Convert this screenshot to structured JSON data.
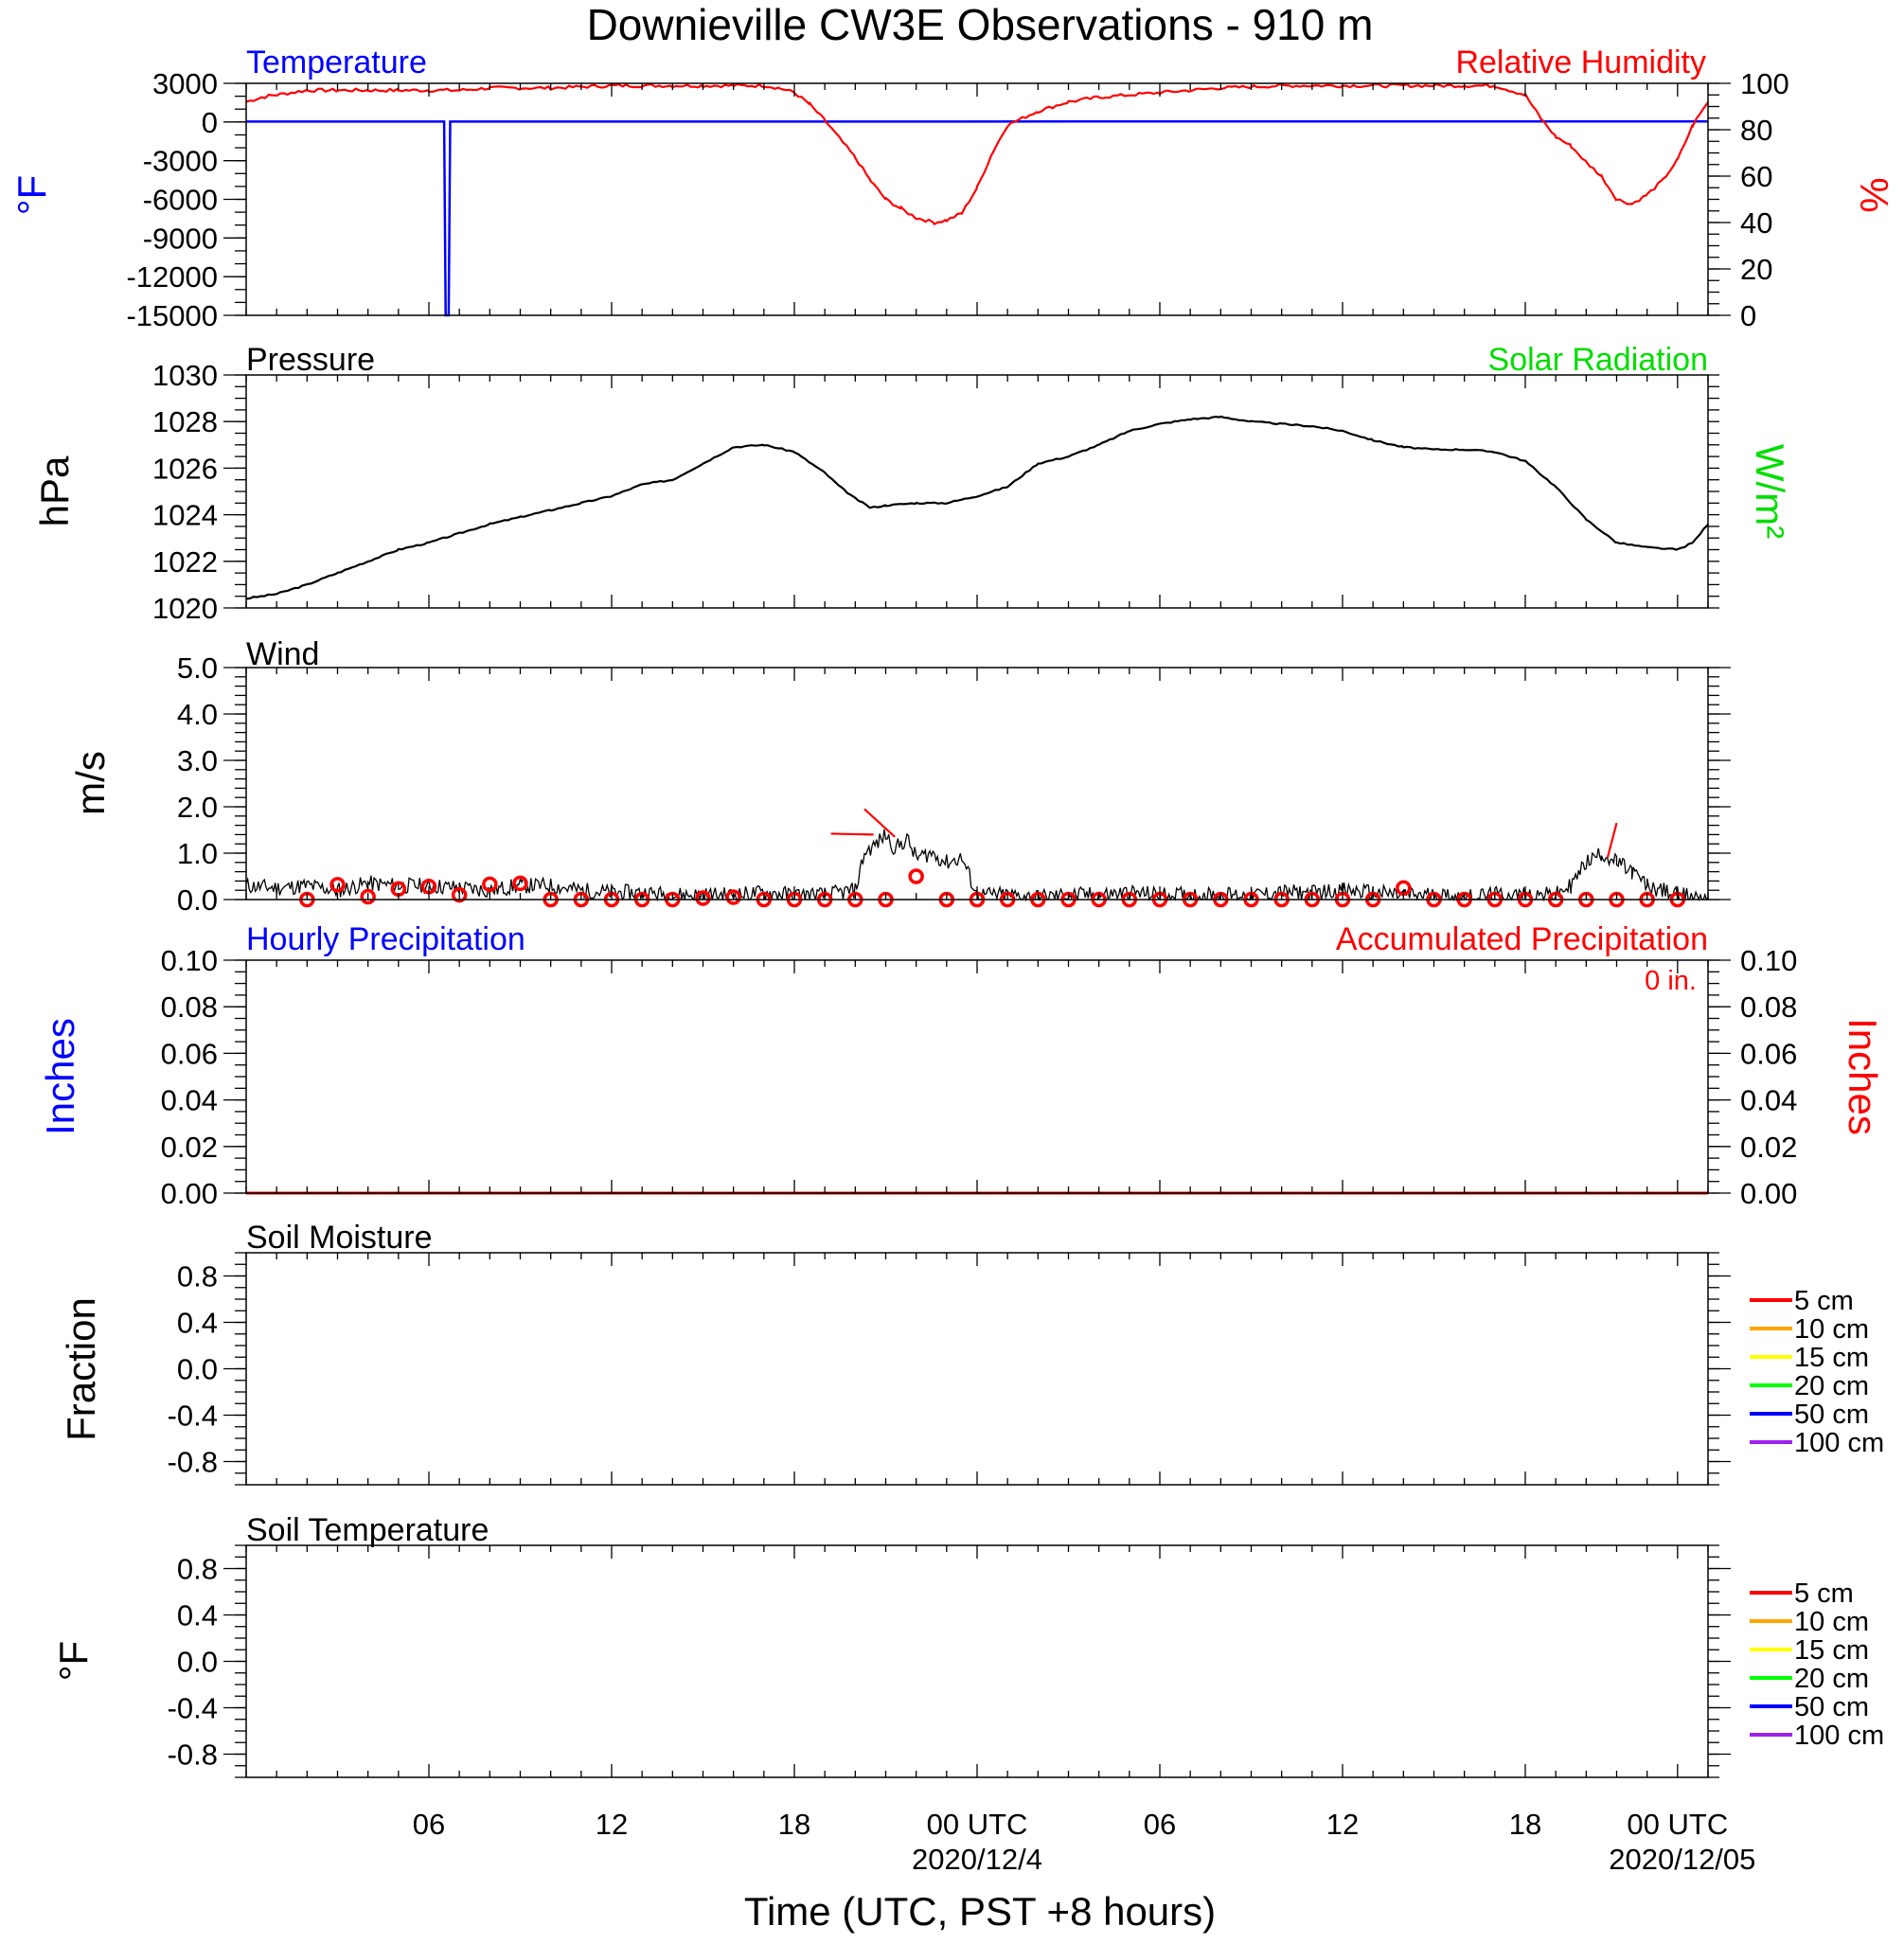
{
  "title": "Downieville CW3E Observations - 910 m",
  "x_axis": {
    "label": "Time (UTC, PST +8 hours)",
    "tick_labels": [
      "06",
      "12",
      "18",
      "00 UTC",
      "06",
      "12",
      "18",
      "00 UTC"
    ],
    "date_labels": [
      "2020/12/4",
      "2020/12/05"
    ]
  },
  "panels": {
    "temp_rh": {
      "left_title": "Temperature",
      "right_title": "Relative Humidity",
      "left_unit": "°F",
      "right_unit": "%",
      "left_ticks": [
        "3000",
        "0",
        "-3000",
        "-6000",
        "-9000",
        "-12000",
        "-15000"
      ],
      "right_ticks": [
        "100",
        "80",
        "60",
        "40",
        "20",
        "0"
      ]
    },
    "pressure": {
      "left_title": "Pressure",
      "right_title": "Solar Radiation",
      "left_unit": "hPa",
      "right_unit": "W/m²",
      "left_ticks": [
        "1030",
        "1028",
        "1026",
        "1024",
        "1022",
        "1020"
      ]
    },
    "wind": {
      "title": "Wind",
      "unit": "m/s",
      "ticks": [
        "5.0",
        "4.0",
        "3.0",
        "2.0",
        "1.0",
        "0.0"
      ]
    },
    "precip": {
      "left_title": "Hourly Precipitation",
      "right_title": "Accumulated Precipitation",
      "total_label": "0 in.",
      "left_unit": "Inches",
      "right_unit": "Inches",
      "ticks": [
        "0.10",
        "0.08",
        "0.06",
        "0.04",
        "0.02",
        "0.00"
      ]
    },
    "soil_moisture": {
      "title": "Soil Moisture",
      "unit": "Fraction",
      "ticks": [
        "0.8",
        "0.4",
        "0.0",
        "-0.4",
        "-0.8"
      ],
      "legend": [
        "5 cm",
        "10 cm",
        "15 cm",
        "20 cm",
        "50 cm",
        "100 cm"
      ]
    },
    "soil_temp": {
      "title": "Soil Temperature",
      "unit": "°F",
      "ticks": [
        "0.8",
        "0.4",
        "0.0",
        "-0.4",
        "-0.8"
      ],
      "legend": [
        "5 cm",
        "10 cm",
        "15 cm",
        "20 cm",
        "50 cm",
        "100 cm"
      ]
    }
  },
  "colors": {
    "temperature": "#0000ff",
    "humidity": "#ff0000",
    "pressure": "#000000",
    "solar": "#00dd00",
    "wind": "#000000",
    "gust_markers": "#ff0000",
    "legend": [
      "#ff0000",
      "#ffa500",
      "#ffff00",
      "#00ff00",
      "#0000ff",
      "#a020f0"
    ]
  },
  "chart_data": [
    {
      "type": "line",
      "title": "Temperature / Relative Humidity",
      "x_unit": "hours since 2020/12/3 00 UTC",
      "xlim": [
        0,
        48
      ],
      "ylim_left": [
        -15000,
        3000
      ],
      "ylim_right": [
        0,
        100
      ],
      "series": [
        {
          "name": "Temperature",
          "axis": "left",
          "x": [
            0,
            6.5,
            6.55,
            6.65,
            6.7,
            48
          ],
          "y": [
            32,
            32,
            -15000,
            -15000,
            32,
            45
          ]
        },
        {
          "name": "Relative Humidity",
          "axis": "right",
          "x": [
            0,
            0.5,
            1,
            2,
            3,
            4,
            5,
            6,
            7,
            8,
            10,
            12,
            14,
            15,
            16,
            17,
            17.5,
            18,
            18.5,
            19,
            20,
            20.5,
            21,
            21.5,
            22,
            22.3,
            22.6,
            23,
            23.5,
            24,
            24.5,
            25,
            26,
            27,
            28,
            30,
            32,
            34,
            36,
            38,
            40,
            41,
            42,
            42.5,
            43,
            43.5,
            44,
            44.5,
            45,
            45.5,
            46,
            46.5,
            47,
            47.5,
            48
          ],
          "y": [
            92,
            94,
            95,
            97,
            97,
            97,
            97,
            97,
            97,
            98,
            98,
            99,
            99,
            99,
            99,
            99,
            98,
            96,
            91,
            84,
            68,
            58,
            50,
            46,
            42,
            41,
            40,
            41,
            44,
            55,
            70,
            82,
            88,
            92,
            94,
            96,
            98,
            99,
            99,
            99,
            99,
            99,
            95,
            85,
            77,
            73,
            66,
            60,
            50,
            48,
            52,
            58,
            67,
            82,
            92
          ]
        }
      ]
    },
    {
      "type": "line",
      "title": "Pressure",
      "ylabel": "hPa",
      "xlim": [
        0,
        48
      ],
      "ylim": [
        1020,
        1030
      ],
      "series": [
        {
          "name": "Pressure",
          "x": [
            0,
            1,
            2,
            3,
            4,
            5,
            6,
            7,
            8,
            9,
            10,
            11,
            12,
            13,
            14,
            15,
            16,
            17,
            18,
            19,
            19.5,
            20,
            20.5,
            21,
            22,
            23,
            24,
            25,
            26,
            27,
            28,
            29,
            30,
            31,
            32,
            33,
            34,
            35,
            36,
            37,
            38,
            39,
            40,
            41,
            42,
            43,
            44,
            45,
            46,
            47,
            47.5,
            48
          ],
          "y": [
            1020.4,
            1020.6,
            1021.0,
            1021.5,
            1022.0,
            1022.5,
            1022.8,
            1023.2,
            1023.6,
            1023.9,
            1024.2,
            1024.5,
            1024.8,
            1025.3,
            1025.5,
            1026.2,
            1026.9,
            1027.0,
            1026.7,
            1025.8,
            1025.2,
            1024.7,
            1024.3,
            1024.4,
            1024.5,
            1024.5,
            1024.8,
            1025.2,
            1026.2,
            1026.5,
            1027.0,
            1027.6,
            1027.9,
            1028.1,
            1028.2,
            1028.0,
            1027.9,
            1027.8,
            1027.6,
            1027.2,
            1026.9,
            1026.8,
            1026.8,
            1026.7,
            1026.3,
            1025.2,
            1023.8,
            1022.8,
            1022.6,
            1022.5,
            1022.8,
            1023.6
          ]
        }
      ]
    },
    {
      "type": "line",
      "title": "Wind",
      "ylabel": "m/s",
      "xlim": [
        0,
        48
      ],
      "ylim": [
        0,
        5
      ],
      "series": [
        {
          "name": "Wind speed",
          "x": [
            0,
            1,
            2,
            3,
            4,
            5,
            6,
            7,
            8,
            9,
            10,
            11,
            12,
            13,
            14,
            15,
            16,
            17,
            18,
            19,
            19.5,
            20,
            20.3,
            20.7,
            21,
            21.3,
            21.7,
            22,
            22.5,
            23,
            23.5,
            24,
            25,
            26,
            27,
            28,
            29,
            30,
            31,
            32,
            33,
            34,
            35,
            36,
            37,
            38,
            39,
            40,
            41,
            42,
            43,
            43.5,
            44,
            44.5,
            45,
            45.5,
            46,
            47,
            48
          ],
          "y": [
            0.3,
            0.25,
            0.3,
            0.2,
            0.35,
            0.3,
            0.3,
            0.25,
            0.2,
            0.3,
            0.3,
            0.2,
            0.15,
            0.15,
            0.1,
            0.1,
            0.1,
            0.15,
            0.1,
            0.1,
            0.15,
            0.2,
            1.0,
            1.2,
            1.4,
            1.1,
            1.3,
            0.9,
            1.0,
            0.8,
            0.9,
            0.1,
            0.1,
            0.05,
            0.1,
            0.1,
            0.15,
            0.1,
            0.1,
            0.1,
            0.1,
            0.15,
            0.15,
            0.2,
            0.15,
            0.1,
            0.1,
            0.05,
            0.1,
            0.1,
            0.1,
            0.3,
            0.8,
            1.0,
            0.8,
            0.6,
            0.3,
            0.1,
            0.05
          ]
        },
        {
          "name": "Hourly wind markers",
          "x": [
            2,
            3,
            4,
            5,
            6,
            7,
            8,
            9,
            10,
            11,
            12,
            13,
            14,
            15,
            16,
            17,
            18,
            19,
            20,
            21,
            22,
            23,
            24,
            25,
            26,
            27,
            28,
            29,
            30,
            31,
            32,
            33,
            34,
            35,
            36,
            37,
            38,
            39,
            40,
            41,
            42,
            43,
            44,
            45,
            46,
            47
          ],
          "y": [
            0.0,
            0.32,
            0.06,
            0.23,
            0.28,
            0.1,
            0.33,
            0.35,
            0.0,
            0.0,
            0.0,
            0.0,
            0.0,
            0.03,
            0.05,
            0.0,
            0.0,
            0.0,
            0.0,
            0.0,
            0.5,
            0.0,
            0.0,
            0.0,
            0.0,
            0.0,
            0.0,
            0.0,
            0.0,
            0.0,
            0.0,
            0.0,
            0.0,
            0.0,
            0.0,
            0.0,
            0.25,
            0.0,
            0.0,
            0.0,
            0.0,
            0.0,
            0.0,
            0.0,
            0.0,
            0.0
          ]
        }
      ]
    },
    {
      "type": "line",
      "title": "Hourly Precipitation / Accumulated Precipitation",
      "xlim": [
        0,
        48
      ],
      "ylim": [
        0,
        0.1
      ],
      "series": [
        {
          "name": "Hourly Precipitation",
          "x": [
            0,
            48
          ],
          "y": [
            0,
            0
          ]
        },
        {
          "name": "Accumulated Precipitation",
          "x": [
            0,
            48
          ],
          "y": [
            0,
            0
          ]
        }
      ]
    }
  ]
}
